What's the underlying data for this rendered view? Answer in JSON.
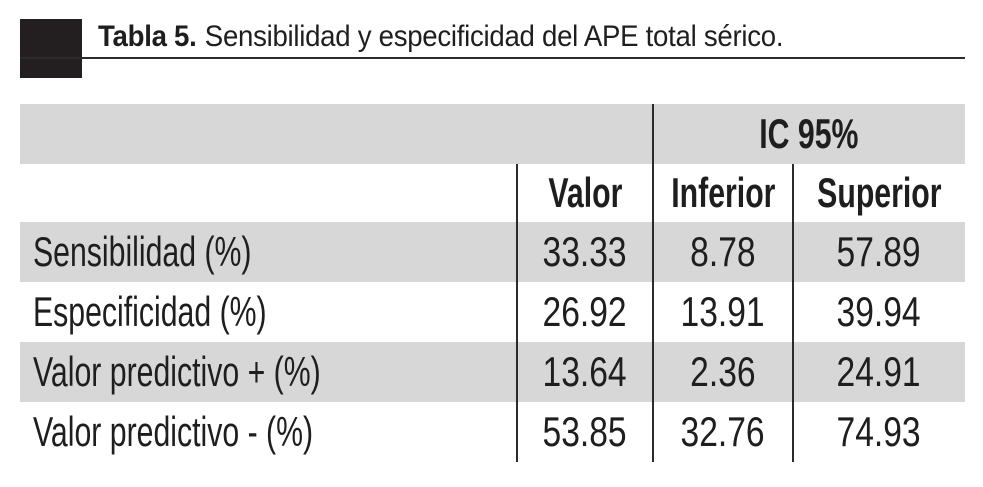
{
  "title": {
    "number": "Tabla 5.",
    "text": "Sensibilidad y especificidad del APE total sérico."
  },
  "table": {
    "group_header": "IC 95%",
    "columns": [
      "Valor",
      "Inferior",
      "Superior"
    ],
    "rows": [
      {
        "label": "Sensibilidad (%)",
        "valor": "33.33",
        "inferior": "8.78",
        "superior": "57.89"
      },
      {
        "label": "Especificidad (%)",
        "valor": "26.92",
        "inferior": "13.91",
        "superior": "39.94"
      },
      {
        "label": "Valor predictivo + (%)",
        "valor": "13.64",
        "inferior": "2.36",
        "superior": "24.91"
      },
      {
        "label": "Valor predictivo - (%)",
        "valor": "53.85",
        "inferior": "32.76",
        "superior": "74.93"
      }
    ]
  },
  "colors": {
    "row_shade": "#d7d7d7",
    "text": "#1e1e1e",
    "rule": "#2b2b2b",
    "title_marker": "#231f20",
    "background": "#ffffff"
  }
}
